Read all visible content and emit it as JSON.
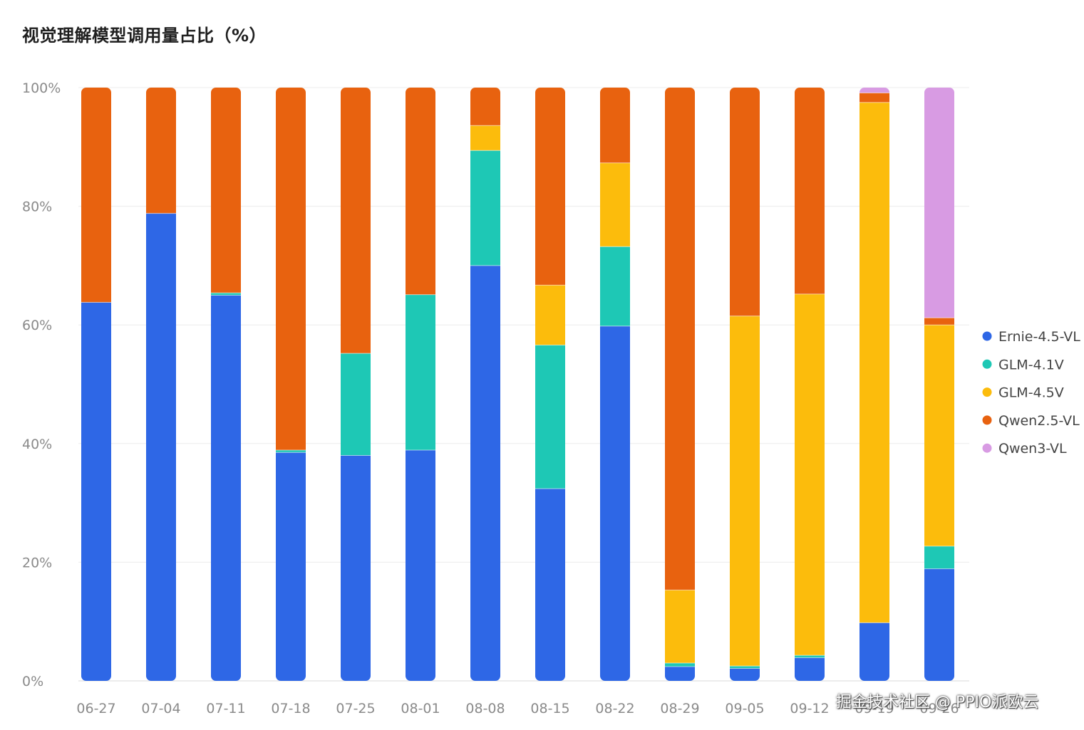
{
  "title": "视觉理解模型调用量占比（%）",
  "watermark": "掘金技术社区 @ PPIO派欧云",
  "chart_data": {
    "type": "bar",
    "stacked": true,
    "categories": [
      "06-27",
      "07-04",
      "07-11",
      "07-18",
      "07-25",
      "08-01",
      "08-08",
      "08-15",
      "08-22",
      "08-29",
      "09-05",
      "09-12",
      "09-19",
      "09-26"
    ],
    "yticks": [
      "0%",
      "20%",
      "40%",
      "60%",
      "80%",
      "100%"
    ],
    "ylim": [
      0,
      100
    ],
    "grid": true,
    "legend_position": "right",
    "series": [
      {
        "name": "Ernie-4.5-VL",
        "color": "#2e67e6",
        "values": [
          63.8,
          78.8,
          65.0,
          38.5,
          38.0,
          38.9,
          70.0,
          32.4,
          59.8,
          2.4,
          2.1,
          3.9,
          9.8,
          18.9
        ]
      },
      {
        "name": "GLM-4.1V",
        "color": "#1ec8b5",
        "values": [
          0.0,
          0.0,
          0.4,
          0.4,
          17.2,
          26.2,
          19.4,
          24.2,
          13.4,
          0.6,
          0.4,
          0.4,
          0.0,
          3.8
        ]
      },
      {
        "name": "GLM-4.5V",
        "color": "#fcbc0c",
        "values": [
          0.0,
          0.0,
          0.0,
          0.0,
          0.0,
          0.0,
          4.2,
          10.1,
          14.1,
          12.3,
          59.0,
          60.9,
          87.7,
          37.3
        ]
      },
      {
        "name": "Qwen2.5-VL",
        "color": "#e8620f",
        "values": [
          36.2,
          21.2,
          34.6,
          61.1,
          44.8,
          34.9,
          6.4,
          33.3,
          12.7,
          84.7,
          38.5,
          34.8,
          1.6,
          1.2
        ]
      },
      {
        "name": "Qwen3-VL",
        "color": "#d89be3",
        "values": [
          0.0,
          0.0,
          0.0,
          0.0,
          0.0,
          0.0,
          0.0,
          0.0,
          0.0,
          0.0,
          0.0,
          0.0,
          0.9,
          38.8
        ]
      }
    ]
  }
}
